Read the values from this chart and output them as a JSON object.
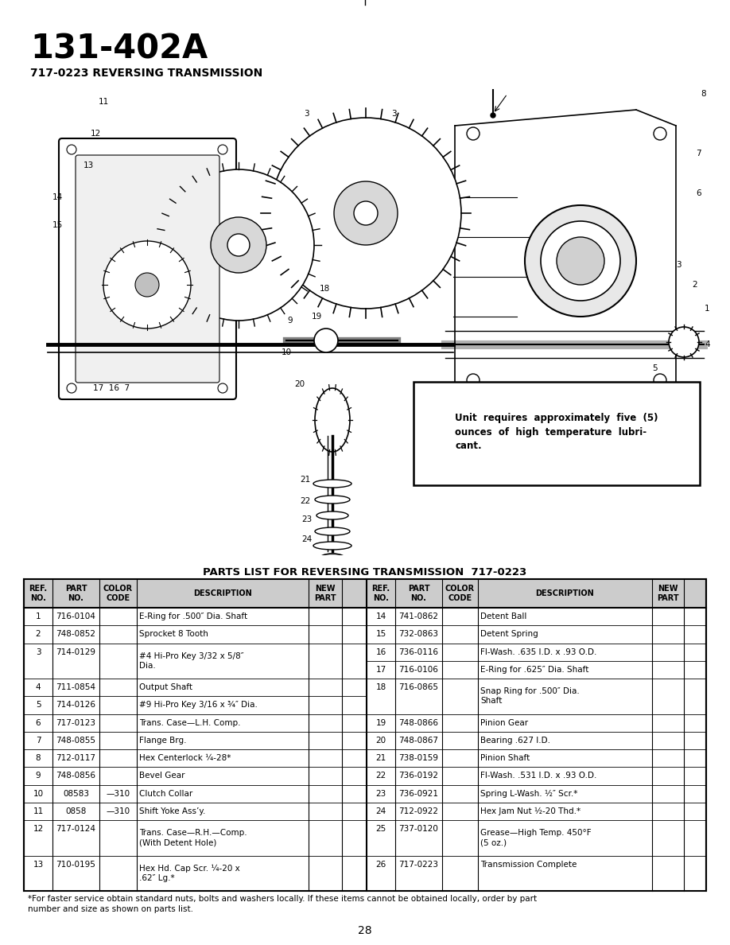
{
  "title": "131-402A",
  "subtitle": "717-0223 REVERSING TRANSMISSION",
  "table_title": "PARTS LIST FOR REVERSING TRANSMISSION  717-0223",
  "parts_left": [
    [
      "1",
      "716-0104",
      "",
      "E-Ring for .500″ Dia. Shaft"
    ],
    [
      "2",
      "748-0852",
      "",
      "Sprocket 8 Tooth"
    ],
    [
      "3",
      "714-0129",
      "",
      "#4 Hi-Pro Key 3/32 x 5/8″\nDia."
    ],
    [
      "4",
      "711-0854",
      "",
      "Output Shaft"
    ],
    [
      "5",
      "714-0126",
      "",
      "#9 Hi-Pro Key 3/16 x ¾″ Dia."
    ],
    [
      "6",
      "717-0123",
      "",
      "Trans. Case—L.H. Comp."
    ],
    [
      "7",
      "748-0855",
      "",
      "Flange Brg."
    ],
    [
      "8",
      "712-0117",
      "",
      "Hex Centerlock ¼-28*"
    ],
    [
      "9",
      "748-0856",
      "",
      "Bevel Gear"
    ],
    [
      "10",
      "08583",
      "—310",
      "Clutch Collar"
    ],
    [
      "11",
      "0858",
      "—310",
      "Shift Yoke Ass’y."
    ],
    [
      "12",
      "717-0124",
      "",
      "Trans. Case—R.H.—Comp.\n(With Detent Hole)"
    ],
    [
      "13",
      "710-0195",
      "",
      "Hex Hd. Cap Scr. ¼-20 x\n.62″ Lg.*"
    ]
  ],
  "parts_right": [
    [
      "14",
      "741-0862",
      "",
      "Detent Ball"
    ],
    [
      "15",
      "732-0863",
      "",
      "Detent Spring"
    ],
    [
      "16",
      "736-0116",
      "",
      "Fl-Wash. .635 I.D. x .93 O.D."
    ],
    [
      "17",
      "716-0106",
      "",
      "E-Ring for .625″ Dia. Shaft"
    ],
    [
      "18",
      "716-0865",
      "",
      "Snap Ring for .500″ Dia.\nShaft"
    ],
    [
      "19",
      "748-0866",
      "",
      "Pinion Gear"
    ],
    [
      "20",
      "748-0867",
      "",
      "Bearing .627 I.D."
    ],
    [
      "21",
      "738-0159",
      "",
      "Pinion Shaft"
    ],
    [
      "22",
      "736-0192",
      "",
      "Fl-Wash. .531 I.D. x .93 O.D."
    ],
    [
      "23",
      "736-0921",
      "",
      "Spring L-Wash. ½″ Scr.*"
    ],
    [
      "24",
      "712-0922",
      "",
      "Hex Jam Nut ½-20 Thd.*"
    ],
    [
      "25",
      "737-0120",
      "",
      "Grease—High Temp. 450°F\n(5 oz.)"
    ],
    [
      "26",
      "717-0223",
      "",
      "Transmission Complete"
    ]
  ],
  "row_lines_left": [
    1,
    1,
    2,
    1,
    1,
    1,
    1,
    1,
    1,
    1,
    1,
    2,
    2
  ],
  "row_lines_right": [
    1,
    1,
    1,
    1,
    2,
    1,
    1,
    1,
    1,
    1,
    1,
    2,
    1
  ],
  "footnote": "*For faster service obtain standard nuts, bolts and washers locally. If these items cannot be obtained locally, order by part\nnumber and size as shown on parts list.",
  "page_number": "28",
  "note_box": "Unit  requires  approximately  five  (5)\nounces  of  high  temperature  lubri-\ncant.",
  "bg_color": "#ffffff",
  "text_color": "#000000"
}
